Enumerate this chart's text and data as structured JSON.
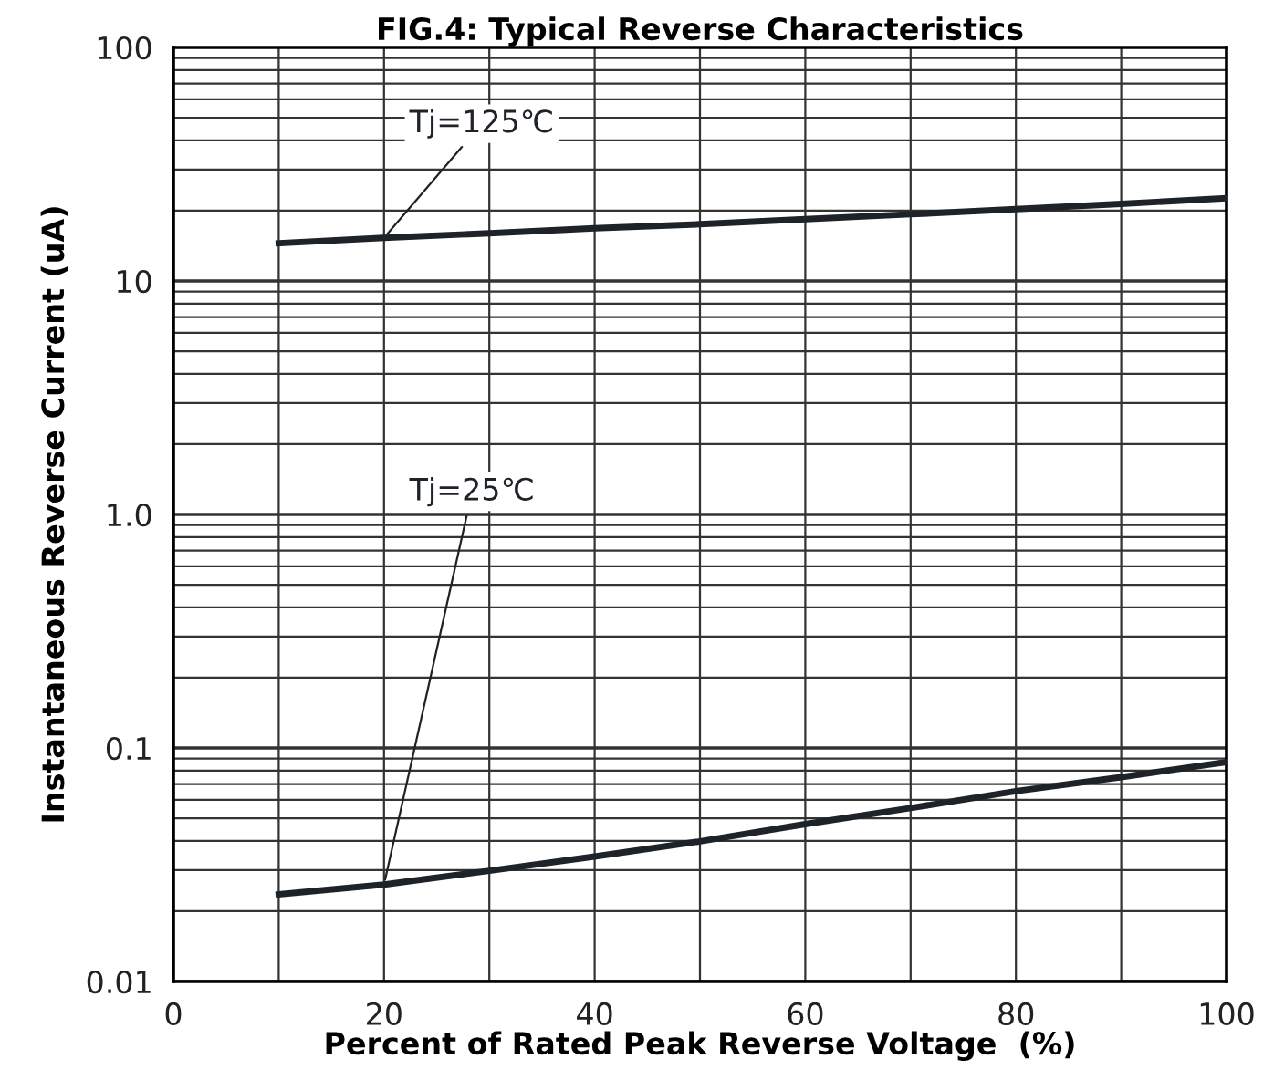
{
  "chart_data": {
    "type": "line",
    "title": "FIG.4: Typical Reverse Characteristics",
    "xlabel": "Percent of Rated Peak Reverse Voltage  (%)",
    "ylabel": "Instantaneous Reverse Current (uA)",
    "log": "y",
    "xlim": [
      0,
      100
    ],
    "ylim": [
      0.01,
      100
    ],
    "xticks": [
      0,
      20,
      40,
      60,
      80,
      100
    ],
    "yticks": [
      0.01,
      0.1,
      {
        "value": 1,
        "label": "1.0"
      },
      10,
      100
    ],
    "grid": true,
    "legend": false,
    "marker": "none",
    "line_style": "solid",
    "series": [
      {
        "name": "Tj=125℃",
        "color": "#1e2329",
        "x": [
          10,
          20,
          30,
          40,
          50,
          60,
          70,
          80,
          90,
          100
        ],
        "values": [
          14.5,
          15.3,
          16.0,
          16.8,
          17.5,
          18.4,
          19.3,
          20.3,
          21.4,
          22.6
        ]
      },
      {
        "name": "Tj=25℃",
        "color": "#1e2329",
        "x": [
          10,
          20,
          30,
          40,
          50,
          60,
          70,
          80,
          90,
          100
        ],
        "values": [
          0.0236,
          0.026,
          0.0298,
          0.0343,
          0.0398,
          0.0472,
          0.0553,
          0.0653,
          0.075,
          0.087
        ]
      }
    ]
  }
}
